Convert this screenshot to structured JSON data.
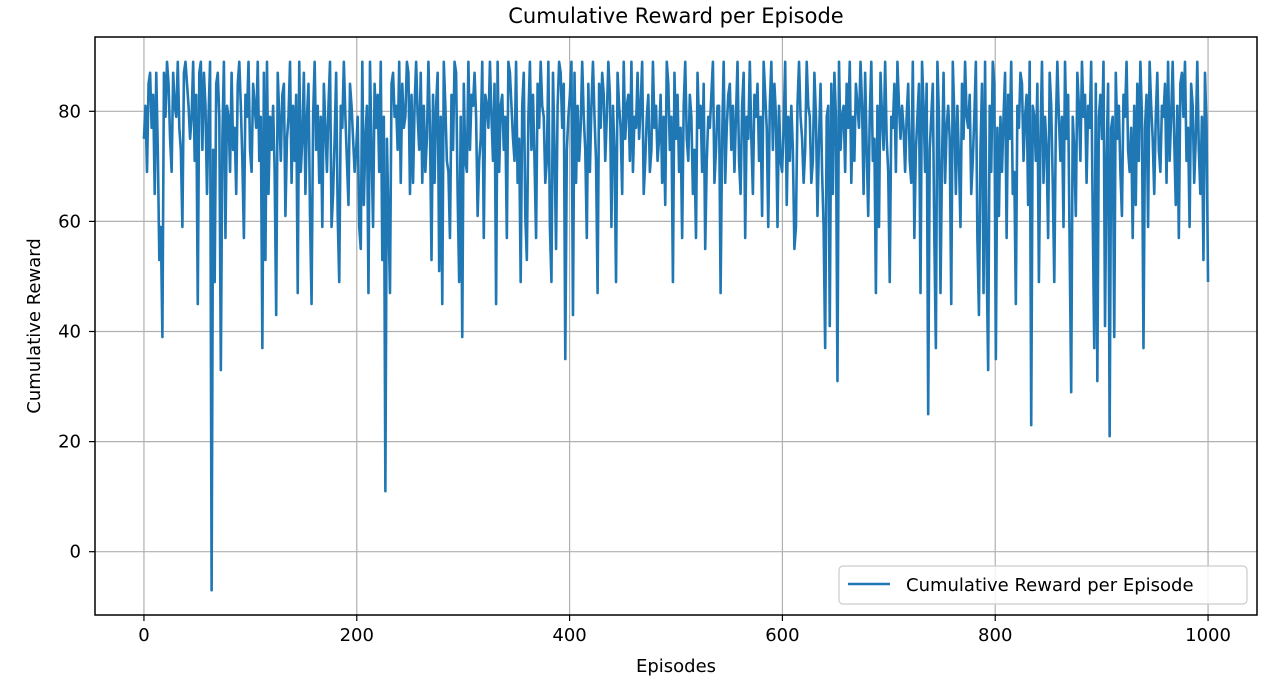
{
  "chart_data": {
    "type": "line",
    "title": "Cumulative Reward per Episode",
    "xlabel": "Episodes",
    "ylabel": "Cumulative Reward",
    "xlim": [
      -46,
      1046
    ],
    "ylim": [
      -11.5,
      93.5
    ],
    "xticks": [
      0,
      200,
      400,
      600,
      800,
      1000
    ],
    "yticks": [
      0,
      20,
      40,
      60,
      80
    ],
    "grid": true,
    "legend_position": "lower-right",
    "series": [
      {
        "name": "Cumulative Reward per Episode",
        "color": "#1f77b4",
        "x_start": 0,
        "x_step": 1,
        "values": [
          75,
          81,
          69,
          85,
          87,
          77,
          83,
          65,
          87,
          73,
          53,
          59,
          39,
          87,
          79,
          89,
          85,
          75,
          69,
          87,
          81,
          79,
          89,
          77,
          73,
          59,
          87,
          89,
          85,
          81,
          75,
          79,
          89,
          71,
          83,
          45,
          87,
          89,
          73,
          87,
          81,
          65,
          79,
          89,
          -7,
          73,
          49,
          85,
          87,
          79,
          33,
          75,
          89,
          57,
          81,
          79,
          69,
          87,
          73,
          77,
          65,
          85,
          89,
          81,
          71,
          57,
          83,
          79,
          89,
          73,
          69,
          85,
          81,
          77,
          89,
          71,
          79,
          37,
          87,
          53,
          89,
          65,
          79,
          73,
          81,
          69,
          43,
          87,
          79,
          71,
          83,
          85,
          61,
          75,
          79,
          89,
          67,
          81,
          71,
          83,
          47,
          89,
          69,
          75,
          87,
          65,
          79,
          85,
          61,
          45,
          79,
          89,
          73,
          81,
          67,
          79,
          59,
          85,
          77,
          69,
          81,
          89,
          59,
          65,
          75,
          87,
          61,
          49,
          81,
          77,
          89,
          79,
          71,
          63,
          85,
          81,
          75,
          69,
          73,
          79,
          59,
          55,
          89,
          63,
          75,
          81,
          47,
          89,
          73,
          59,
          85,
          77,
          83,
          69,
          89,
          53,
          79,
          11,
          75,
          61,
          47,
          85,
          87,
          79,
          81,
          73,
          89,
          67,
          85,
          77,
          79,
          89,
          87,
          65,
          83,
          67,
          81,
          89,
          79,
          73,
          87,
          67,
          81,
          69,
          75,
          89,
          77,
          53,
          83,
          67,
          81,
          87,
          51,
          79,
          45,
          89,
          81,
          71,
          69,
          57,
          83,
          73,
          89,
          87,
          65,
          49,
          79,
          39,
          85,
          71,
          69,
          89,
          73,
          83,
          81,
          87,
          79,
          61,
          71,
          75,
          89,
          57,
          83,
          81,
          77,
          89,
          79,
          71,
          85,
          45,
          89,
          69,
          81,
          83,
          73,
          79,
          57,
          89,
          87,
          81,
          75,
          71,
          89,
          67,
          75,
          49,
          81,
          87,
          61,
          53,
          79,
          89,
          73,
          83,
          71,
          57,
          85,
          77,
          89,
          81,
          79,
          67,
          71,
          89,
          59,
          49,
          87,
          73,
          55,
          81,
          89,
          87,
          77,
          85,
          35,
          73,
          79,
          83,
          89,
          43,
          87,
          67,
          81,
          71,
          77,
          89,
          79,
          73,
          57,
          85,
          69,
          81,
          89,
          79,
          71,
          47,
          85,
          77,
          87,
          83,
          71,
          79,
          89,
          83,
          59,
          81,
          73,
          49,
          87,
          81,
          77,
          65,
          89,
          75,
          81,
          83,
          71,
          89,
          69,
          79,
          77,
          87,
          75,
          81,
          89,
          65,
          71,
          79,
          83,
          69,
          73,
          89,
          77,
          81,
          71,
          75,
          83,
          67,
          79,
          63,
          89,
          85,
          73,
          79,
          49,
          87,
          75,
          83,
          69,
          77,
          57,
          81,
          89,
          75,
          71,
          83,
          79,
          65,
          73,
          57,
          87,
          77,
          81,
          69,
          85,
          55,
          71,
          79,
          77,
          83,
          89,
          67,
          73,
          81,
          81,
          47,
          75,
          89,
          67,
          77,
          83,
          85,
          73,
          81,
          69,
          79,
          89,
          71,
          65,
          81,
          87,
          57,
          79,
          75,
          89,
          75,
          65,
          83,
          79,
          85,
          71,
          79,
          61,
          89,
          83,
          77,
          59,
          81,
          89,
          73,
          85,
          79,
          59,
          81,
          71,
          69,
          77,
          89,
          63,
          79,
          71,
          81,
          73,
          55,
          59,
          81,
          89,
          79,
          75,
          67,
          73,
          89,
          81,
          79,
          67,
          71,
          87,
          79,
          61,
          75,
          85,
          69,
          59,
          37,
          79,
          81,
          41,
          85,
          65,
          87,
          79,
          31,
          89,
          73,
          79,
          81,
          69,
          85,
          77,
          89,
          67,
          79,
          71,
          85,
          81,
          77,
          89,
          81,
          65,
          87,
          73,
          61,
          79,
          89,
          71,
          75,
          47,
          81,
          59,
          87,
          79,
          73,
          89,
          75,
          69,
          49,
          79,
          77,
          85,
          69,
          89,
          81,
          75,
          81,
          77,
          69,
          79,
          85,
          71,
          67,
          89,
          57,
          73,
          79,
          85,
          47,
          89,
          81,
          69,
          85,
          25,
          73,
          79,
          85,
          57,
          37,
          89,
          79,
          47,
          71,
          87,
          67,
          77,
          81,
          75,
          45,
          89,
          79,
          65,
          81,
          71,
          59,
          85,
          75,
          89,
          79,
          77,
          83,
          65,
          71,
          79,
          89,
          57,
          43,
          73,
          85,
          47,
          89,
          53,
          33,
          81,
          69,
          89,
          85,
          35,
          77,
          61,
          79,
          69,
          79,
          87,
          57,
          83,
          75,
          89,
          65,
          69,
          45,
          81,
          77,
          87,
          85,
          71,
          79,
          83,
          63,
          89,
          23,
          81,
          79,
          71,
          85,
          49,
          75,
          89,
          67,
          79,
          73,
          57,
          87,
          81,
          67,
          49,
          77,
          89,
          79,
          71,
          79,
          59,
          89,
          75,
          83,
          55,
          29,
          79,
          73,
          61,
          87,
          81,
          71,
          89,
          79,
          83,
          67,
          81,
          77,
          89,
          61,
          37,
          85,
          31,
          79,
          83,
          75,
          89,
          41,
          71,
          85,
          21,
          77,
          79,
          39,
          87,
          75,
          81,
          69,
          61,
          83,
          79,
          89,
          73,
          69,
          77,
          57,
          81,
          63,
          85,
          71,
          89,
          79,
          37,
          77,
          83,
          59,
          89,
          81,
          75,
          65,
          79,
          87,
          73,
          69,
          81,
          79,
          85,
          67,
          89,
          71,
          79,
          89,
          75,
          63,
          81,
          57,
          85,
          87,
          79,
          89,
          71,
          77,
          59,
          85,
          81,
          67,
          75,
          89,
          73,
          65,
          79,
          53,
          87,
          77,
          49
        ]
      }
    ]
  }
}
